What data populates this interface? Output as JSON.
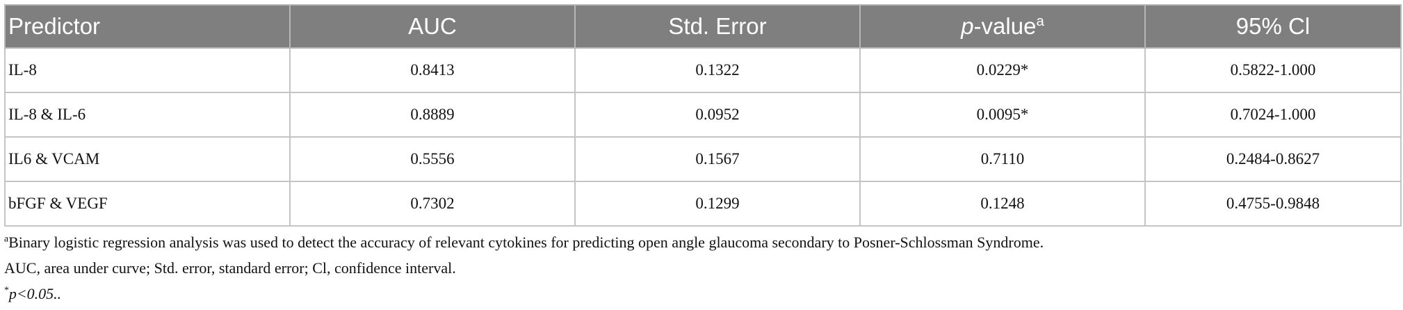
{
  "table": {
    "headers": {
      "predictor": "Predictor",
      "auc": "AUC",
      "std_error": "Std. Error",
      "pvalue_italic": "p",
      "pvalue_rest": "-value",
      "pvalue_sup": "a",
      "ci": "95% Cl"
    },
    "rows": [
      {
        "predictor": "IL-8",
        "auc": "0.8413",
        "std_error": "0.1322",
        "pvalue": "0.0229*",
        "ci": "0.5822-1.000"
      },
      {
        "predictor": "IL-8 & IL-6",
        "auc": "0.8889",
        "std_error": "0.0952",
        "pvalue": "0.0095*",
        "ci": "0.7024-1.000"
      },
      {
        "predictor": "IL6 & VCAM",
        "auc": "0.5556",
        "std_error": "0.1567",
        "pvalue": "0.7110",
        "ci": "0.2484-0.8627"
      },
      {
        "predictor": "bFGF & VEGF",
        "auc": "0.7302",
        "std_error": "0.1299",
        "pvalue": "0.1248",
        "ci": "0.4755-0.9848"
      }
    ]
  },
  "footnotes": {
    "note_a_marker": "a",
    "note_a_text": "Binary logistic regression analysis was used to detect the accuracy of relevant cytokines for predicting open angle glaucoma secondary to Posner-Schlossman Syndrome.",
    "abbrev_text": "AUC, area under curve; Std. error, standard error; Cl, confidence interval.",
    "star_marker": "*",
    "star_text": "p<0.05.."
  }
}
